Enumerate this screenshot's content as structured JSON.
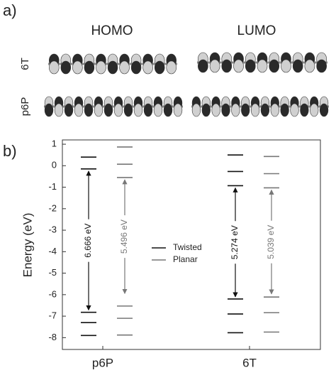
{
  "panel_a": {
    "label": "a)",
    "columns": [
      "HOMO",
      "LUMO"
    ],
    "rows": [
      "6T",
      "p6P"
    ]
  },
  "chart_data": {
    "type": "energy-levels",
    "panel_label": "b)",
    "y_label": "Energy (eV)",
    "categories": [
      "p6P",
      "6T"
    ],
    "ylim": [
      -8.55,
      1.2
    ],
    "yticks": [
      1,
      0,
      -1,
      -2,
      -3,
      -4,
      -5,
      -6,
      -7,
      -8
    ],
    "series": [
      {
        "name": "Twisted",
        "color": "#111111",
        "values": [
          [
            0.4,
            -0.15,
            -6.82,
            -7.3,
            -7.9
          ],
          [
            0.5,
            -0.27,
            -0.93,
            -6.2,
            -6.9,
            -7.77
          ]
        ],
        "gaps": [
          6.666,
          5.274
        ],
        "gap_labels": [
          "6.666 eV",
          "5.274 eV"
        ]
      },
      {
        "name": "Planar",
        "color": "#777777",
        "values": [
          [
            0.87,
            0.07,
            -0.55,
            -6.53,
            -7.1,
            -7.88
          ],
          [
            0.43,
            -0.37,
            -1.03,
            -6.11,
            -6.84,
            -7.74
          ]
        ],
        "gaps": [
          5.496,
          5.039
        ],
        "gap_labels": [
          "5.496 eV",
          "5.039 eV"
        ]
      }
    ]
  }
}
